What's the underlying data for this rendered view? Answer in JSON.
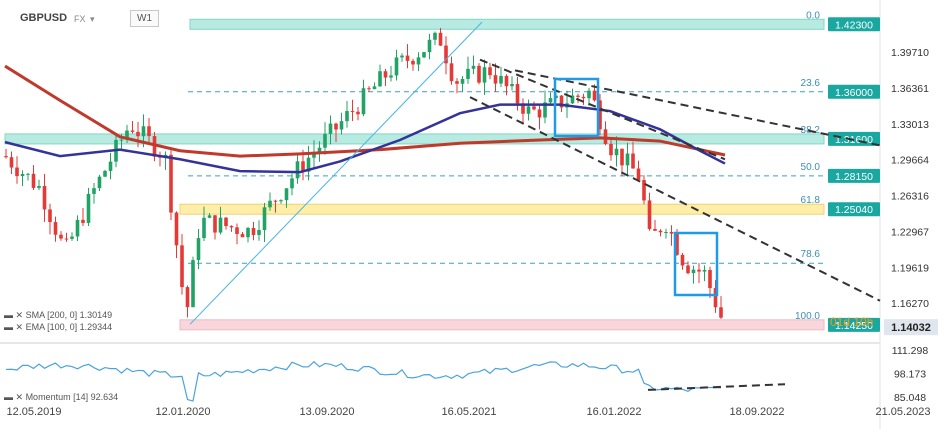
{
  "header": {
    "symbol": "GBPUSD",
    "exchange": "FX",
    "timeframe": "W1"
  },
  "indicators": {
    "sma_label": "SMA [200, 0] 1.30149",
    "ema_label": "EMA [100, 0] 1.29344",
    "momentum_label": "Momentum [14] 92.634"
  },
  "colors": {
    "sma": "#c0392b",
    "ema": "#333399",
    "levels_teal": "#9fe3d6",
    "level_yellow": "#ffe98a",
    "level_pink": "#f7c9cf",
    "bull": "#21a366",
    "bear": "#e53935",
    "trend": "#333333",
    "momentum": "#4aa3df",
    "highlight_box": "#1e9be8"
  },
  "chart_data": {
    "type": "candlestick",
    "symbol": "GBPUSD",
    "timeframe": "W1",
    "ylim": [
      1.13,
      1.43
    ],
    "x_ticks": [
      "12.05.2019",
      "12.01.2020",
      "13.09.2020",
      "16.05.2021",
      "16.01.2022",
      "18.09.2022",
      "21.05.2023"
    ],
    "y_ticks": [
      "1.39710",
      "1.36361",
      "1.33013",
      "1.29664",
      "1.26316",
      "1.22967",
      "1.19619",
      "1.16270"
    ],
    "current_price": "1.14032",
    "levels": [
      {
        "price": 1.423,
        "label": "1.42300",
        "fib": "0.0",
        "style": "band-teal"
      },
      {
        "price": 1.36,
        "label": "1.36000",
        "fib": "23.6",
        "style": "dashed"
      },
      {
        "price": 1.316,
        "label": "1.31600",
        "fib": "38.2",
        "style": "band-teal"
      },
      {
        "price": 1.2815,
        "label": "1.28150",
        "fib": "50.0",
        "style": "dashed"
      },
      {
        "price": 1.2504,
        "label": "1.25040",
        "fib": "61.8",
        "style": "band-yellow"
      },
      {
        "price": 1.2,
        "label": "",
        "fib": "78.6",
        "style": "dashed"
      },
      {
        "price": 1.1425,
        "label": "1.14250",
        "fib": "100.0",
        "style": "band-pink"
      }
    ],
    "series": [
      {
        "name": "SMA [200, 0]",
        "value": 1.30149
      },
      {
        "name": "EMA [100, 0]",
        "value": 1.29344
      }
    ],
    "momentum": {
      "name": "Momentum [14]",
      "value": 92.634,
      "ylim": [
        85.048,
        111.298
      ],
      "ticks": [
        "111.298",
        "98.173",
        "85.048"
      ]
    }
  }
}
